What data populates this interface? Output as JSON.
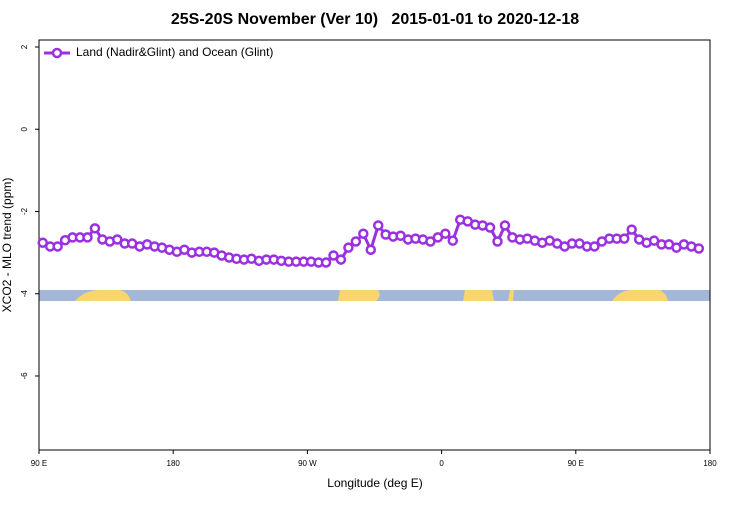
{
  "chart_data": {
    "type": "line",
    "title": "25S-20S November (Ver 10)   2015-01-01 to 2020-12-18",
    "x_label": "Longitude (deg E)",
    "y_label": "XCO2 - MLO trend (ppm)",
    "x": [
      92.5,
      97.5,
      102.5,
      107.5,
      112.5,
      117.5,
      122.5,
      127.5,
      132.5,
      137.5,
      142.5,
      147.5,
      152.5,
      157.5,
      162.5,
      167.5,
      172.5,
      177.5,
      182.5,
      187.5,
      192.5,
      197.5,
      202.5,
      207.5,
      212.5,
      217.5,
      222.5,
      227.5,
      232.5,
      237.5,
      242.5,
      247.5,
      252.5,
      257.5,
      262.5,
      267.5,
      272.5,
      277.5,
      282.5,
      287.5,
      292.5,
      297.5,
      302.5,
      307.5,
      312.5,
      317.5,
      322.5,
      327.5,
      332.5,
      337.5,
      342.5,
      347.5,
      352.5,
      357.5,
      362.5,
      367.5,
      372.5,
      377.5,
      382.5,
      387.5,
      392.5,
      397.5,
      402.5,
      407.5,
      412.5,
      417.5,
      422.5,
      427.5,
      432.5,
      437.5,
      442.5,
      447.5,
      452.5,
      457.5,
      462.5,
      467.5,
      472.5,
      477.5,
      482.5,
      487.5,
      492.5,
      497.5,
      502.5,
      507.5,
      512.5,
      517.5,
      522.5,
      527.5,
      532.5
    ],
    "series": [
      {
        "name": "Land (Nadir&Glint) and Ocean (Glint)",
        "color": "#9b30e0",
        "values": [
          -2.76,
          -2.85,
          -2.85,
          -2.7,
          -2.63,
          -2.63,
          -2.63,
          -2.41,
          -2.68,
          -2.73,
          -2.68,
          -2.78,
          -2.78,
          -2.85,
          -2.8,
          -2.85,
          -2.88,
          -2.93,
          -2.98,
          -2.93,
          -3.0,
          -2.98,
          -2.98,
          -3.0,
          -3.07,
          -3.12,
          -3.15,
          -3.17,
          -3.15,
          -3.2,
          -3.17,
          -3.17,
          -3.2,
          -3.22,
          -3.22,
          -3.22,
          -3.22,
          -3.24,
          -3.24,
          -3.07,
          -3.17,
          -2.88,
          -2.73,
          -2.54,
          -2.93,
          -2.34,
          -2.56,
          -2.61,
          -2.59,
          -2.68,
          -2.66,
          -2.68,
          -2.73,
          -2.63,
          -2.54,
          -2.71,
          -2.2,
          -2.24,
          -2.32,
          -2.34,
          -2.39,
          -2.73,
          -2.34,
          -2.63,
          -2.68,
          -2.66,
          -2.71,
          -2.76,
          -2.71,
          -2.78,
          -2.85,
          -2.78,
          -2.78,
          -2.85,
          -2.85,
          -2.73,
          -2.66,
          -2.66,
          -2.66,
          -2.44,
          -2.68,
          -2.76,
          -2.71,
          -2.8,
          -2.8,
          -2.88,
          -2.8,
          -2.85,
          -2.9
        ]
      }
    ],
    "xlim": [
      90,
      540
    ],
    "ylim": [
      -7.8,
      2.17
    ],
    "xticks": [
      {
        "value": 90,
        "label": "90 E"
      },
      180,
      {
        "value": 270,
        "label": "90 W"
      },
      {
        "value": 360,
        "label": "0"
      },
      {
        "value": 450,
        "label": "90 E"
      },
      {
        "value": 540,
        "label": "180"
      }
    ],
    "yticks": [
      2,
      0,
      -2,
      -4,
      -6
    ],
    "legend": "top-left"
  }
}
